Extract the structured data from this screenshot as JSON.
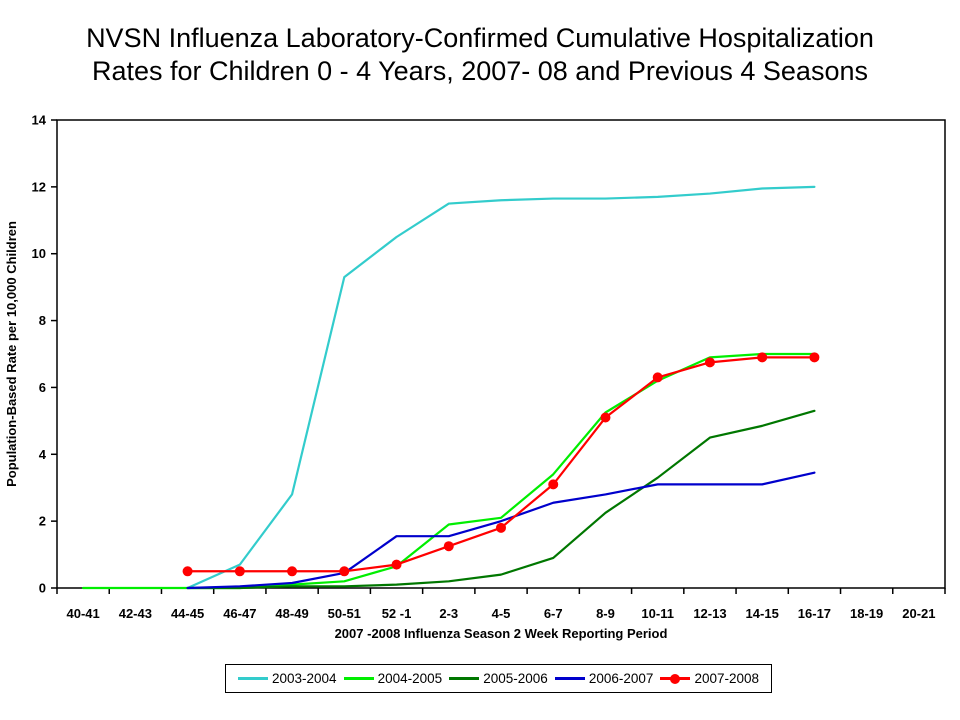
{
  "title": {
    "line1": "NVSN Influenza Laboratory-Confirmed Cumulative Hospitalization",
    "line2": "Rates for Children 0 - 4 Years, 2007- 08 and Previous 4 Seasons"
  },
  "chart_data": {
    "type": "line",
    "title": "NVSN Influenza Laboratory-Confirmed Cumulative Hospitalization Rates for Children 0 - 4 Years, 2007- 08 and Previous 4 Seasons",
    "xlabel": "2007 -2008 Influenza Season 2 Week Reporting Period",
    "ylabel": "Population-Based Rate per 10,000 Children",
    "ylim": [
      0,
      14
    ],
    "ytick_step": 2,
    "grid": false,
    "legend_position": "bottom",
    "categories": [
      "40-41",
      "42-43",
      "44-45",
      "46-47",
      "48-49",
      "50-51",
      "52 -1",
      "2-3",
      "4-5",
      "6-7",
      "8-9",
      "10-11",
      "12-13",
      "14-15",
      "16-17",
      "18-19",
      "20-21"
    ],
    "series": [
      {
        "name": "2003-2004",
        "color": "#33CCCC",
        "marker": "none",
        "start_index": 2,
        "values": [
          0,
          0.7,
          2.8,
          9.3,
          10.5,
          11.5,
          11.6,
          11.65,
          11.65,
          11.7,
          11.8,
          11.95,
          12.0
        ]
      },
      {
        "name": "2004-2005",
        "color": "#00EE00",
        "marker": "none",
        "start_index": 0,
        "values": [
          0,
          0,
          0,
          0,
          0.1,
          0.2,
          0.65,
          1.9,
          2.1,
          3.4,
          5.25,
          6.2,
          6.9,
          7.0,
          7.0
        ]
      },
      {
        "name": "2005-2006",
        "color": "#007700",
        "marker": "none",
        "start_index": 2,
        "values": [
          0,
          0,
          0.05,
          0.05,
          0.1,
          0.2,
          0.4,
          0.9,
          2.25,
          3.3,
          4.5,
          4.85,
          5.3
        ]
      },
      {
        "name": "2006-2007",
        "color": "#0000CC",
        "marker": "none",
        "start_index": 2,
        "values": [
          0,
          0.05,
          0.15,
          0.45,
          1.55,
          1.55,
          2.0,
          2.55,
          2.8,
          3.1,
          3.1,
          3.1,
          3.45
        ]
      },
      {
        "name": "2007-2008",
        "color": "#FF0000",
        "marker": "circle",
        "start_index": 2,
        "values": [
          0.5,
          0.5,
          0.5,
          0.5,
          0.7,
          1.25,
          1.8,
          3.1,
          5.1,
          6.3,
          6.75,
          6.9,
          6.9
        ]
      }
    ]
  }
}
